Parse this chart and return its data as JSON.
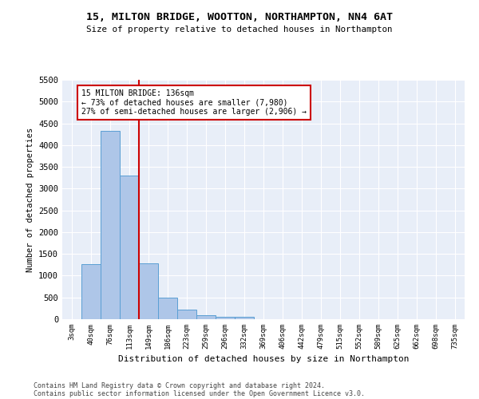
{
  "title1": "15, MILTON BRIDGE, WOOTTON, NORTHAMPTON, NN4 6AT",
  "title2": "Size of property relative to detached houses in Northampton",
  "xlabel": "Distribution of detached houses by size in Northampton",
  "ylabel": "Number of detached properties",
  "bar_labels": [
    "3sqm",
    "40sqm",
    "76sqm",
    "113sqm",
    "149sqm",
    "186sqm",
    "223sqm",
    "259sqm",
    "296sqm",
    "332sqm",
    "369sqm",
    "406sqm",
    "442sqm",
    "479sqm",
    "515sqm",
    "552sqm",
    "589sqm",
    "625sqm",
    "662sqm",
    "698sqm",
    "735sqm"
  ],
  "bar_values": [
    0,
    1270,
    4330,
    3300,
    1290,
    490,
    220,
    90,
    60,
    50,
    0,
    0,
    0,
    0,
    0,
    0,
    0,
    0,
    0,
    0,
    0
  ],
  "bar_color": "#aec6e8",
  "bar_edgecolor": "#5a9fd4",
  "property_line_x": 3.5,
  "property_line_label": "15 MILTON BRIDGE: 136sqm",
  "annotation_line1": "← 73% of detached houses are smaller (7,980)",
  "annotation_line2": "27% of semi-detached houses are larger (2,906) →",
  "annotation_box_color": "#ffffff",
  "annotation_box_edgecolor": "#cc0000",
  "line_color": "#cc0000",
  "ylim": [
    0,
    5500
  ],
  "yticks": [
    0,
    500,
    1000,
    1500,
    2000,
    2500,
    3000,
    3500,
    4000,
    4500,
    5000,
    5500
  ],
  "background_color": "#e8eef8",
  "footer1": "Contains HM Land Registry data © Crown copyright and database right 2024.",
  "footer2": "Contains public sector information licensed under the Open Government Licence v3.0."
}
